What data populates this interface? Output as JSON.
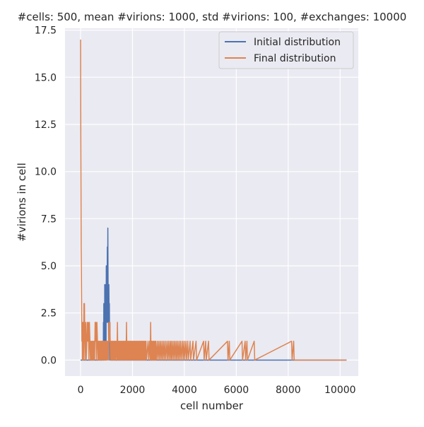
{
  "chart_data": {
    "type": "line",
    "title": "#cells: 500, mean #virions: 1000, std #virions: 100, #exchanges: 10000",
    "xlabel": "cell number",
    "ylabel": "#virions in cell",
    "xlim": [
      -600,
      10700
    ],
    "ylim": [
      -0.85,
      17.6
    ],
    "xticks": [
      0,
      2000,
      4000,
      6000,
      8000,
      10000
    ],
    "xtick_labels": [
      "0",
      "2000",
      "4000",
      "6000",
      "8000",
      "10000"
    ],
    "yticks": [
      0.0,
      2.5,
      5.0,
      7.5,
      10.0,
      12.5,
      15.0,
      17.5
    ],
    "ytick_labels": [
      "0.0",
      "2.5",
      "5.0",
      "7.5",
      "10.0",
      "12.5",
      "15.0",
      "17.5"
    ],
    "grid": true,
    "legend_position": "top-right",
    "series": [
      {
        "name": "Initial distribution",
        "color": "#4c72b0",
        "note": "sampled from the visible plot",
        "points": [
          [
            0,
            0
          ],
          [
            850,
            0
          ],
          [
            860,
            1
          ],
          [
            875,
            0
          ],
          [
            880,
            2
          ],
          [
            890,
            0
          ],
          [
            895,
            3
          ],
          [
            905,
            1
          ],
          [
            915,
            3
          ],
          [
            925,
            0
          ],
          [
            930,
            4
          ],
          [
            940,
            2
          ],
          [
            950,
            4
          ],
          [
            960,
            1
          ],
          [
            970,
            3
          ],
          [
            980,
            0
          ],
          [
            990,
            5
          ],
          [
            1000,
            2
          ],
          [
            1010,
            5
          ],
          [
            1020,
            3
          ],
          [
            1030,
            6
          ],
          [
            1040,
            2
          ],
          [
            1050,
            7
          ],
          [
            1060,
            4
          ],
          [
            1070,
            3
          ],
          [
            1080,
            1
          ],
          [
            1090,
            4
          ],
          [
            1100,
            2
          ],
          [
            1110,
            3
          ],
          [
            1120,
            0
          ],
          [
            1130,
            2
          ],
          [
            1145,
            0
          ],
          [
            1160,
            1
          ],
          [
            1175,
            0
          ],
          [
            10250,
            0
          ]
        ]
      },
      {
        "name": "Final distribution",
        "color": "#dd8452",
        "note": "sampled from the visible plot",
        "points": [
          [
            0,
            17
          ],
          [
            8,
            12
          ],
          [
            16,
            9
          ],
          [
            22,
            6
          ],
          [
            30,
            5
          ],
          [
            40,
            3
          ],
          [
            50,
            1
          ],
          [
            60,
            2
          ],
          [
            70,
            0
          ],
          [
            80,
            1
          ],
          [
            90,
            2
          ],
          [
            100,
            1
          ],
          [
            110,
            0
          ],
          [
            120,
            1
          ],
          [
            130,
            3
          ],
          [
            140,
            2
          ],
          [
            150,
            3
          ],
          [
            160,
            1
          ],
          [
            170,
            0
          ],
          [
            180,
            1
          ],
          [
            200,
            2
          ],
          [
            220,
            0
          ],
          [
            240,
            1
          ],
          [
            260,
            2
          ],
          [
            280,
            1
          ],
          [
            300,
            2
          ],
          [
            320,
            0
          ],
          [
            340,
            2
          ],
          [
            360,
            1
          ],
          [
            380,
            0
          ],
          [
            400,
            1
          ],
          [
            420,
            0
          ],
          [
            440,
            1
          ],
          [
            460,
            0
          ],
          [
            480,
            1
          ],
          [
            500,
            0
          ],
          [
            520,
            1
          ],
          [
            540,
            0
          ],
          [
            560,
            2
          ],
          [
            575,
            1
          ],
          [
            590,
            2
          ],
          [
            610,
            0
          ],
          [
            630,
            2
          ],
          [
            650,
            1
          ],
          [
            670,
            0
          ],
          [
            690,
            1
          ],
          [
            710,
            0
          ],
          [
            730,
            1
          ],
          [
            750,
            0
          ],
          [
            770,
            1
          ],
          [
            790,
            0
          ],
          [
            810,
            1
          ],
          [
            830,
            0
          ],
          [
            850,
            1
          ],
          [
            870,
            0
          ],
          [
            890,
            1
          ],
          [
            910,
            0
          ],
          [
            930,
            1
          ],
          [
            950,
            0
          ],
          [
            970,
            1
          ],
          [
            990,
            0
          ],
          [
            1010,
            1
          ],
          [
            1030,
            0
          ],
          [
            1050,
            1
          ],
          [
            1070,
            0
          ],
          [
            1090,
            2
          ],
          [
            1110,
            1
          ],
          [
            1130,
            2
          ],
          [
            1150,
            0
          ],
          [
            1170,
            1
          ],
          [
            1190,
            0
          ],
          [
            1210,
            1
          ],
          [
            1230,
            0
          ],
          [
            1250,
            1
          ],
          [
            1270,
            0
          ],
          [
            1290,
            1
          ],
          [
            1310,
            0
          ],
          [
            1330,
            1
          ],
          [
            1350,
            0
          ],
          [
            1370,
            1
          ],
          [
            1400,
            0
          ],
          [
            1420,
            2
          ],
          [
            1435,
            0
          ],
          [
            1450,
            1
          ],
          [
            1470,
            0
          ],
          [
            1490,
            1
          ],
          [
            1510,
            0
          ],
          [
            1530,
            1
          ],
          [
            1550,
            0
          ],
          [
            1570,
            1
          ],
          [
            1590,
            0
          ],
          [
            1610,
            1
          ],
          [
            1630,
            0
          ],
          [
            1650,
            1
          ],
          [
            1670,
            0
          ],
          [
            1690,
            1
          ],
          [
            1710,
            0
          ],
          [
            1730,
            1
          ],
          [
            1750,
            0
          ],
          [
            1770,
            2
          ],
          [
            1785,
            0
          ],
          [
            1800,
            1
          ],
          [
            1820,
            0
          ],
          [
            1840,
            1
          ],
          [
            1860,
            0
          ],
          [
            1880,
            1
          ],
          [
            1900,
            0
          ],
          [
            1920,
            1
          ],
          [
            1940,
            0
          ],
          [
            1960,
            1
          ],
          [
            1980,
            0
          ],
          [
            2000,
            1
          ],
          [
            2020,
            0
          ],
          [
            2040,
            1
          ],
          [
            2060,
            0
          ],
          [
            2080,
            1
          ],
          [
            2100,
            0
          ],
          [
            2120,
            1
          ],
          [
            2140,
            0
          ],
          [
            2160,
            1
          ],
          [
            2180,
            0
          ],
          [
            2200,
            1
          ],
          [
            2220,
            0
          ],
          [
            2240,
            1
          ],
          [
            2260,
            0
          ],
          [
            2280,
            1
          ],
          [
            2300,
            0
          ],
          [
            2320,
            1
          ],
          [
            2340,
            0
          ],
          [
            2360,
            1
          ],
          [
            2380,
            0
          ],
          [
            2400,
            1
          ],
          [
            2420,
            0
          ],
          [
            2440,
            1
          ],
          [
            2460,
            0
          ],
          [
            2480,
            1
          ],
          [
            2500,
            0
          ],
          [
            2520,
            1
          ],
          [
            2540,
            0
          ],
          [
            2600,
            1
          ],
          [
            2620,
            0
          ],
          [
            2660,
            1
          ],
          [
            2680,
            0
          ],
          [
            2700,
            2
          ],
          [
            2715,
            0
          ],
          [
            2740,
            1
          ],
          [
            2760,
            0
          ],
          [
            2780,
            1
          ],
          [
            2800,
            0
          ],
          [
            2820,
            1
          ],
          [
            2840,
            0
          ],
          [
            2860,
            1
          ],
          [
            2880,
            0
          ],
          [
            2900,
            1
          ],
          [
            2920,
            0
          ],
          [
            2960,
            1
          ],
          [
            2980,
            0
          ],
          [
            3020,
            1
          ],
          [
            3040,
            0
          ],
          [
            3080,
            1
          ],
          [
            3100,
            0
          ],
          [
            3140,
            1
          ],
          [
            3160,
            0
          ],
          [
            3200,
            1
          ],
          [
            3220,
            0
          ],
          [
            3260,
            1
          ],
          [
            3280,
            0
          ],
          [
            3330,
            1
          ],
          [
            3350,
            0
          ],
          [
            3390,
            1
          ],
          [
            3410,
            0
          ],
          [
            3450,
            1
          ],
          [
            3470,
            0
          ],
          [
            3500,
            1
          ],
          [
            3520,
            0
          ],
          [
            3560,
            1
          ],
          [
            3580,
            0
          ],
          [
            3620,
            1
          ],
          [
            3640,
            0
          ],
          [
            3680,
            1
          ],
          [
            3700,
            0
          ],
          [
            3740,
            1
          ],
          [
            3760,
            0
          ],
          [
            3800,
            1
          ],
          [
            3820,
            0
          ],
          [
            3860,
            1
          ],
          [
            3880,
            0
          ],
          [
            3930,
            1
          ],
          [
            3950,
            0
          ],
          [
            3990,
            1
          ],
          [
            4010,
            0
          ],
          [
            4060,
            1
          ],
          [
            4080,
            0
          ],
          [
            4130,
            1
          ],
          [
            4150,
            0
          ],
          [
            4220,
            1
          ],
          [
            4240,
            0
          ],
          [
            4330,
            1
          ],
          [
            4350,
            0
          ],
          [
            4450,
            1
          ],
          [
            4470,
            0
          ],
          [
            4740,
            1
          ],
          [
            4760,
            0
          ],
          [
            4820,
            1
          ],
          [
            4840,
            0
          ],
          [
            4930,
            1
          ],
          [
            4950,
            0
          ],
          [
            5660,
            1
          ],
          [
            5680,
            0
          ],
          [
            5730,
            1
          ],
          [
            5750,
            0
          ],
          [
            6220,
            1
          ],
          [
            6240,
            0
          ],
          [
            6340,
            1
          ],
          [
            6360,
            0
          ],
          [
            6410,
            1
          ],
          [
            6430,
            0
          ],
          [
            6690,
            1
          ],
          [
            6710,
            0
          ],
          [
            8130,
            1
          ],
          [
            8150,
            0
          ],
          [
            8210,
            1
          ],
          [
            8230,
            0
          ],
          [
            10250,
            0
          ]
        ]
      }
    ]
  }
}
